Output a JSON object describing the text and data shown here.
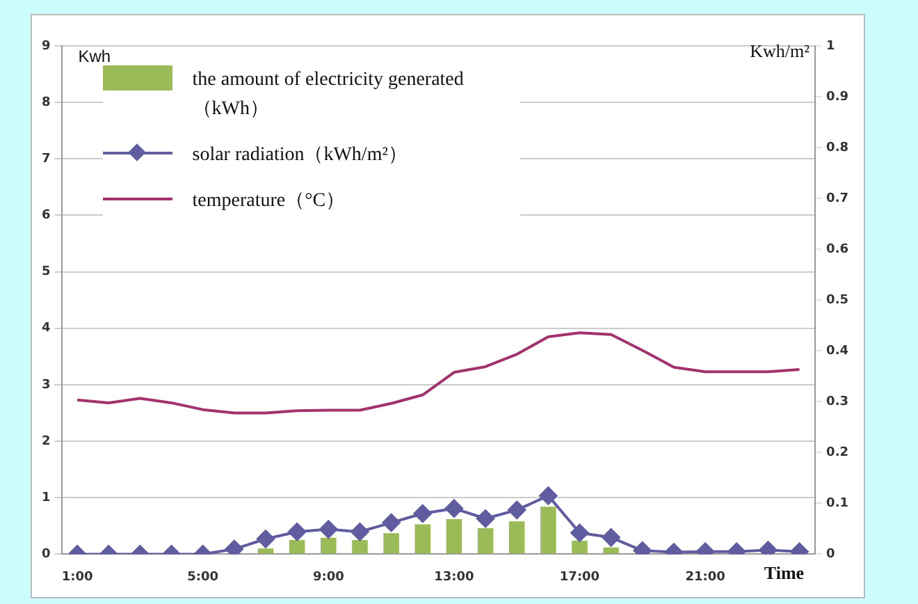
{
  "chart_data": {
    "type": "bar",
    "xlabel": "Time",
    "ylabel": "Kwh",
    "y2label": "Kwh/m²",
    "categories": [
      "1:00",
      null,
      null,
      null,
      "5:00",
      null,
      null,
      null,
      "9:00",
      null,
      null,
      null,
      "13:00",
      null,
      null,
      null,
      "17:00",
      null,
      null,
      null,
      "21:00",
      null,
      null,
      null
    ],
    "series": [
      {
        "name": "the amount of electricity generated（kWh）",
        "color": "#9bbb59",
        "values": [
          0,
          0,
          0,
          0,
          0,
          0,
          0.1,
          0.25,
          0.29,
          0.25,
          0.37,
          0.53,
          0.62,
          0.46,
          0.58,
          0.84,
          0.24,
          0.12,
          0,
          0,
          0,
          0,
          0,
          0
        ]
      },
      {
        "name": "solar radiation（kWh/m²）",
        "type": "line",
        "axis": "y2",
        "marker": "diamond",
        "color": "#605ca0",
        "values": [
          0,
          0,
          0,
          0,
          0,
          0.01,
          0.03,
          0.044,
          0.049,
          0.044,
          0.062,
          0.08,
          0.09,
          0.07,
          0.087,
          0.115,
          0.042,
          0.033,
          0.007,
          0.004,
          0.005,
          0.005,
          0.008,
          0.005
        ]
      },
      {
        "name": "temperature（°C）",
        "type": "line",
        "marker": "none",
        "color": "#a3336e",
        "values": [
          2.73,
          2.68,
          2.76,
          2.68,
          2.56,
          2.5,
          2.5,
          2.54,
          2.55,
          2.55,
          2.67,
          2.82,
          3.22,
          3.32,
          3.54,
          3.85,
          3.92,
          3.89,
          3.61,
          3.31,
          3.23,
          3.23,
          3.23,
          3.27
        ]
      }
    ],
    "ylim": [
      0,
      9
    ],
    "yticks": [
      0,
      1,
      2,
      3,
      4,
      5,
      6,
      7,
      8,
      9
    ],
    "y2lim": [
      0,
      1
    ],
    "y2ticks": [
      0,
      0.1,
      0.2,
      0.3,
      0.4,
      0.5,
      0.6,
      0.7,
      0.8,
      0.9,
      1
    ],
    "grid": "y",
    "legend": "top left"
  }
}
